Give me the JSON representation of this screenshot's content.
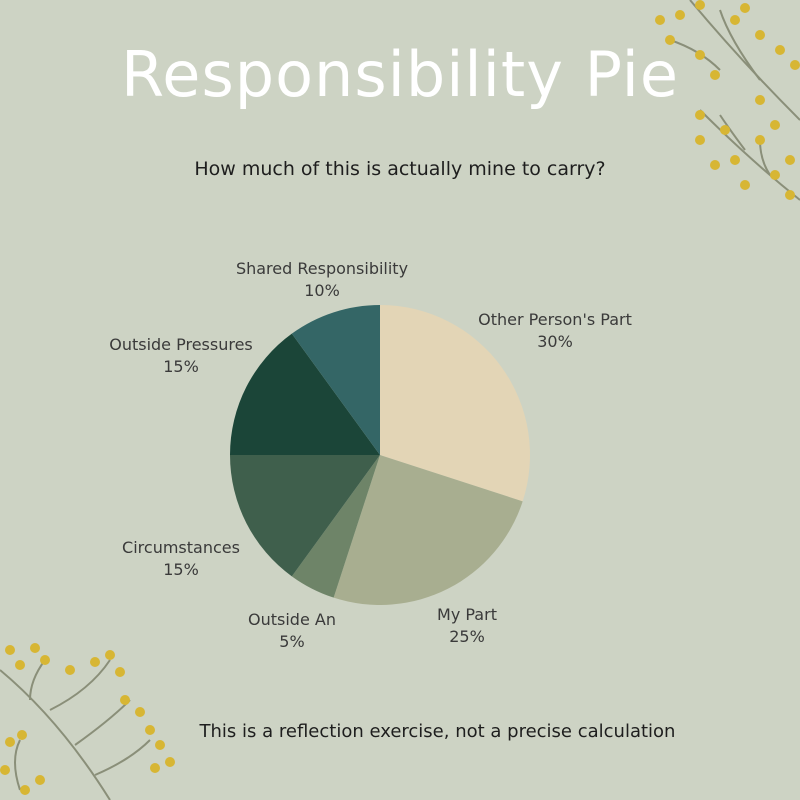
{
  "title": "Responsibility Pie",
  "subtitle": "How much of this is actually mine to carry?",
  "footer": "This is a reflection exercise, not a precise calculation",
  "chart_data": {
    "type": "pie",
    "title": "Responsibility Pie",
    "start_angle_deg": 0,
    "direction": "clockwise",
    "slices": [
      {
        "label": "Other Person's Part",
        "value": 30,
        "value_label": "30%",
        "color": "#e3d5b6"
      },
      {
        "label": "My Part",
        "value": 25,
        "value_label": "25%",
        "color": "#a8ae90"
      },
      {
        "label": "Outside An",
        "value": 5,
        "value_label": "5%",
        "color": "#6e8468"
      },
      {
        "label": "Circumstances",
        "value": 15,
        "value_label": "15%",
        "color": "#3f5f4c"
      },
      {
        "label": "Outside Pressures",
        "value": 15,
        "value_label": "15%",
        "color": "#1b4538"
      },
      {
        "label": "Shared Responsibility",
        "value": 10,
        "value_label": "10%",
        "color": "#346666"
      }
    ]
  },
  "decor": {
    "leaf_color": "#8a8f79",
    "flower_color": "#d7b634",
    "icon": "wildflower-branch"
  }
}
